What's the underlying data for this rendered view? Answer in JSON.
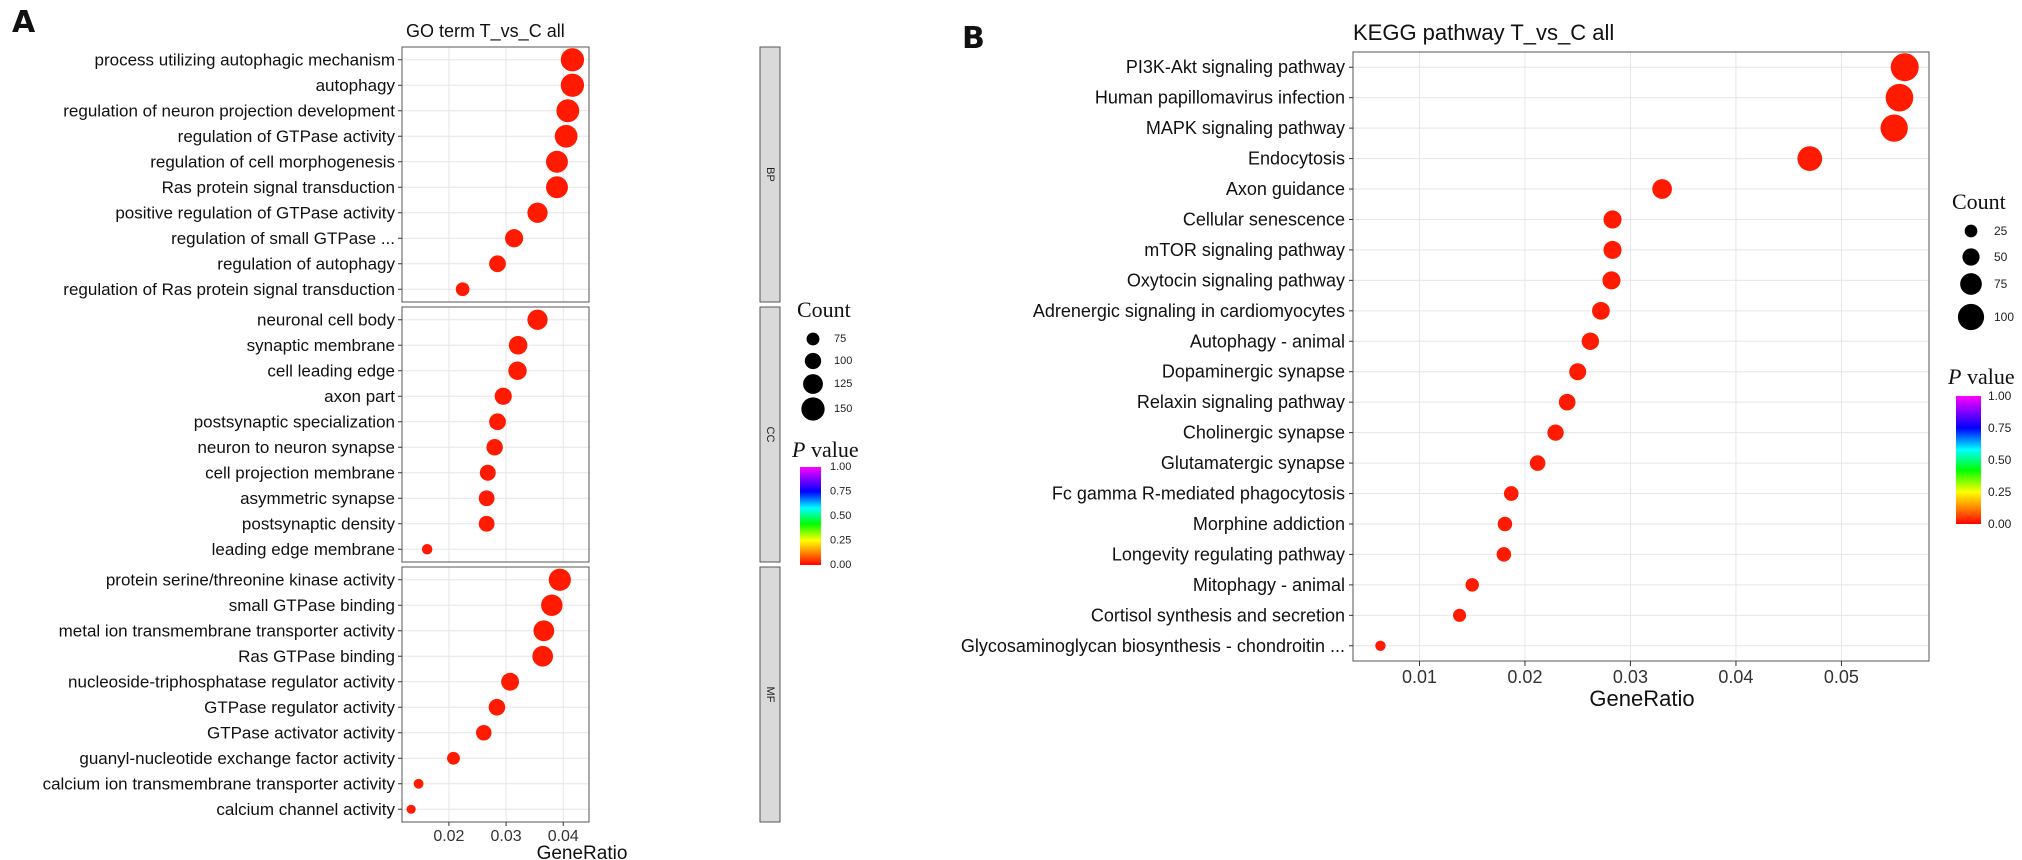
{
  "chart_data": [
    {
      "panel_label": "A",
      "type": "scatter",
      "title": "GO term T_vs_C all",
      "xlabel": "GeneRatio",
      "xlim": [
        0.0118,
        0.0445
      ],
      "xticks": [
        0.02,
        0.03,
        0.04
      ],
      "xtick_labels": [
        "0.02",
        "0.03",
        "0.04"
      ],
      "grid": true,
      "facets": [
        {
          "strip": "BP",
          "points": [
            {
              "label": "process utilizing autophagic mechanism",
              "x": 0.0416,
              "count": 150,
              "p": 0.0
            },
            {
              "label": "autophagy",
              "x": 0.0416,
              "count": 150,
              "p": 0.0
            },
            {
              "label": "regulation of neuron projection development",
              "x": 0.0408,
              "count": 147,
              "p": 0.0
            },
            {
              "label": "regulation of GTPase activity",
              "x": 0.0405,
              "count": 146,
              "p": 0.0
            },
            {
              "label": "regulation of cell morphogenesis",
              "x": 0.0389,
              "count": 140,
              "p": 0.0
            },
            {
              "label": "Ras protein signal transduction",
              "x": 0.0389,
              "count": 140,
              "p": 0.0
            },
            {
              "label": "positive regulation of GTPase activity",
              "x": 0.0355,
              "count": 128,
              "p": 0.0
            },
            {
              "label": "regulation of small GTPase ...",
              "x": 0.0314,
              "count": 113,
              "p": 0.0
            },
            {
              "label": "regulation of autophagy",
              "x": 0.0285,
              "count": 103,
              "p": 0.0
            },
            {
              "label": "regulation of Ras protein signal transduction",
              "x": 0.0224,
              "count": 81,
              "p": 0.0
            }
          ]
        },
        {
          "strip": "CC",
          "points": [
            {
              "label": "neuronal cell body",
              "x": 0.0355,
              "count": 128,
              "p": 0.0
            },
            {
              "label": "synaptic membrane",
              "x": 0.0321,
              "count": 116,
              "p": 0.0
            },
            {
              "label": "cell leading edge",
              "x": 0.032,
              "count": 115,
              "p": 0.0
            },
            {
              "label": "axon part",
              "x": 0.0295,
              "count": 106,
              "p": 0.0
            },
            {
              "label": "postsynaptic specialization",
              "x": 0.0285,
              "count": 103,
              "p": 0.0
            },
            {
              "label": "neuron to neuron synapse",
              "x": 0.028,
              "count": 101,
              "p": 0.0
            },
            {
              "label": "cell projection membrane",
              "x": 0.0268,
              "count": 97,
              "p": 0.0
            },
            {
              "label": "asymmetric synapse",
              "x": 0.0266,
              "count": 96,
              "p": 0.0
            },
            {
              "label": "postsynaptic density",
              "x": 0.0266,
              "count": 96,
              "p": 0.0
            },
            {
              "label": "leading edge membrane",
              "x": 0.0162,
              "count": 58,
              "p": 0.0
            }
          ]
        },
        {
          "strip": "MF",
          "points": [
            {
              "label": "protein serine/threonine kinase activity",
              "x": 0.0394,
              "count": 142,
              "p": 0.0
            },
            {
              "label": "small GTPase binding",
              "x": 0.038,
              "count": 137,
              "p": 0.0
            },
            {
              "label": "metal ion transmembrane transporter activity",
              "x": 0.0366,
              "count": 132,
              "p": 0.0
            },
            {
              "label": "Ras GTPase binding",
              "x": 0.0364,
              "count": 131,
              "p": 0.0
            },
            {
              "label": "nucleoside-triphosphatase regulator activity",
              "x": 0.0307,
              "count": 111,
              "p": 0.0
            },
            {
              "label": "GTPase regulator activity",
              "x": 0.0284,
              "count": 102,
              "p": 0.0
            },
            {
              "label": "GTPase activator activity",
              "x": 0.0261,
              "count": 94,
              "p": 0.0
            },
            {
              "label": "guanyl-nucleotide exchange factor activity",
              "x": 0.0208,
              "count": 75,
              "p": 0.0
            },
            {
              "label": "calcium ion transmembrane transporter activity",
              "x": 0.0147,
              "count": 53,
              "p": 0.0
            },
            {
              "label": "calcium channel activity",
              "x": 0.0134,
              "count": 48,
              "p": 0.0
            }
          ]
        }
      ],
      "legend_count": {
        "title": "Count",
        "values": [
          "75",
          "100",
          "125",
          "150"
        ]
      },
      "legend_p": {
        "title_italic": "P",
        "title_rest": " value",
        "ticks": [
          "1.00",
          "0.75",
          "0.50",
          "0.25",
          "0.00"
        ]
      }
    },
    {
      "panel_label": "B",
      "type": "scatter",
      "title": "KEGG pathway T_vs_C all",
      "xlabel": "GeneRatio",
      "xlim": [
        0.0037,
        0.0583
      ],
      "xticks": [
        0.01,
        0.02,
        0.03,
        0.04,
        0.05
      ],
      "xtick_labels": [
        "0.01",
        "0.02",
        "0.03",
        "0.04",
        "0.05"
      ],
      "grid": true,
      "points": [
        {
          "label": "PI3K-Akt signaling pathway",
          "x": 0.056,
          "count": 110,
          "p": 0.0
        },
        {
          "label": "Human papillomavirus infection",
          "x": 0.0555,
          "count": 108,
          "p": 0.0
        },
        {
          "label": "MAPK signaling pathway",
          "x": 0.055,
          "count": 106,
          "p": 0.0
        },
        {
          "label": "Endocytosis",
          "x": 0.047,
          "count": 92,
          "p": 0.0
        },
        {
          "label": "Axon guidance",
          "x": 0.033,
          "count": 64,
          "p": 0.0
        },
        {
          "label": "Cellular senescence",
          "x": 0.0283,
          "count": 55,
          "p": 0.0
        },
        {
          "label": "mTOR signaling pathway",
          "x": 0.0283,
          "count": 55,
          "p": 0.0
        },
        {
          "label": "Oxytocin signaling pathway",
          "x": 0.0282,
          "count": 55,
          "p": 0.0
        },
        {
          "label": "Adrenergic signaling in cardiomyocytes",
          "x": 0.0272,
          "count": 53,
          "p": 0.0
        },
        {
          "label": "Autophagy - animal",
          "x": 0.0262,
          "count": 51,
          "p": 0.0
        },
        {
          "label": "Dopaminergic synapse",
          "x": 0.025,
          "count": 49,
          "p": 0.0
        },
        {
          "label": "Relaxin signaling pathway",
          "x": 0.024,
          "count": 47,
          "p": 0.0
        },
        {
          "label": "Cholinergic synapse",
          "x": 0.0229,
          "count": 45,
          "p": 0.0
        },
        {
          "label": "Glutamatergic synapse",
          "x": 0.0212,
          "count": 41,
          "p": 0.0
        },
        {
          "label": "Fc gamma R-mediated phagocytosis",
          "x": 0.0187,
          "count": 36,
          "p": 0.0
        },
        {
          "label": "Morphine addiction",
          "x": 0.0181,
          "count": 35,
          "p": 0.0
        },
        {
          "label": "Longevity regulating pathway",
          "x": 0.018,
          "count": 35,
          "p": 0.0
        },
        {
          "label": "Mitophagy - animal",
          "x": 0.015,
          "count": 29,
          "p": 0.0
        },
        {
          "label": "Cortisol synthesis and secretion",
          "x": 0.0138,
          "count": 27,
          "p": 0.0
        },
        {
          "label": "Glycosaminoglycan biosynthesis - chondroitin ...",
          "x": 0.0063,
          "count": 12,
          "p": 0.0
        }
      ],
      "legend_count": {
        "title": "Count",
        "values": [
          "25",
          "50",
          "75",
          "100"
        ]
      },
      "legend_p": {
        "title_italic": "P",
        "title_rest": " value",
        "ticks": [
          "1.00",
          "0.75",
          "0.50",
          "0.25",
          "0.00"
        ]
      }
    }
  ],
  "colors": {
    "dot": "#ff1a00",
    "panel_border": "#555555",
    "grid": "#e6e6e6",
    "strip_fill": "#d9d9d9"
  }
}
